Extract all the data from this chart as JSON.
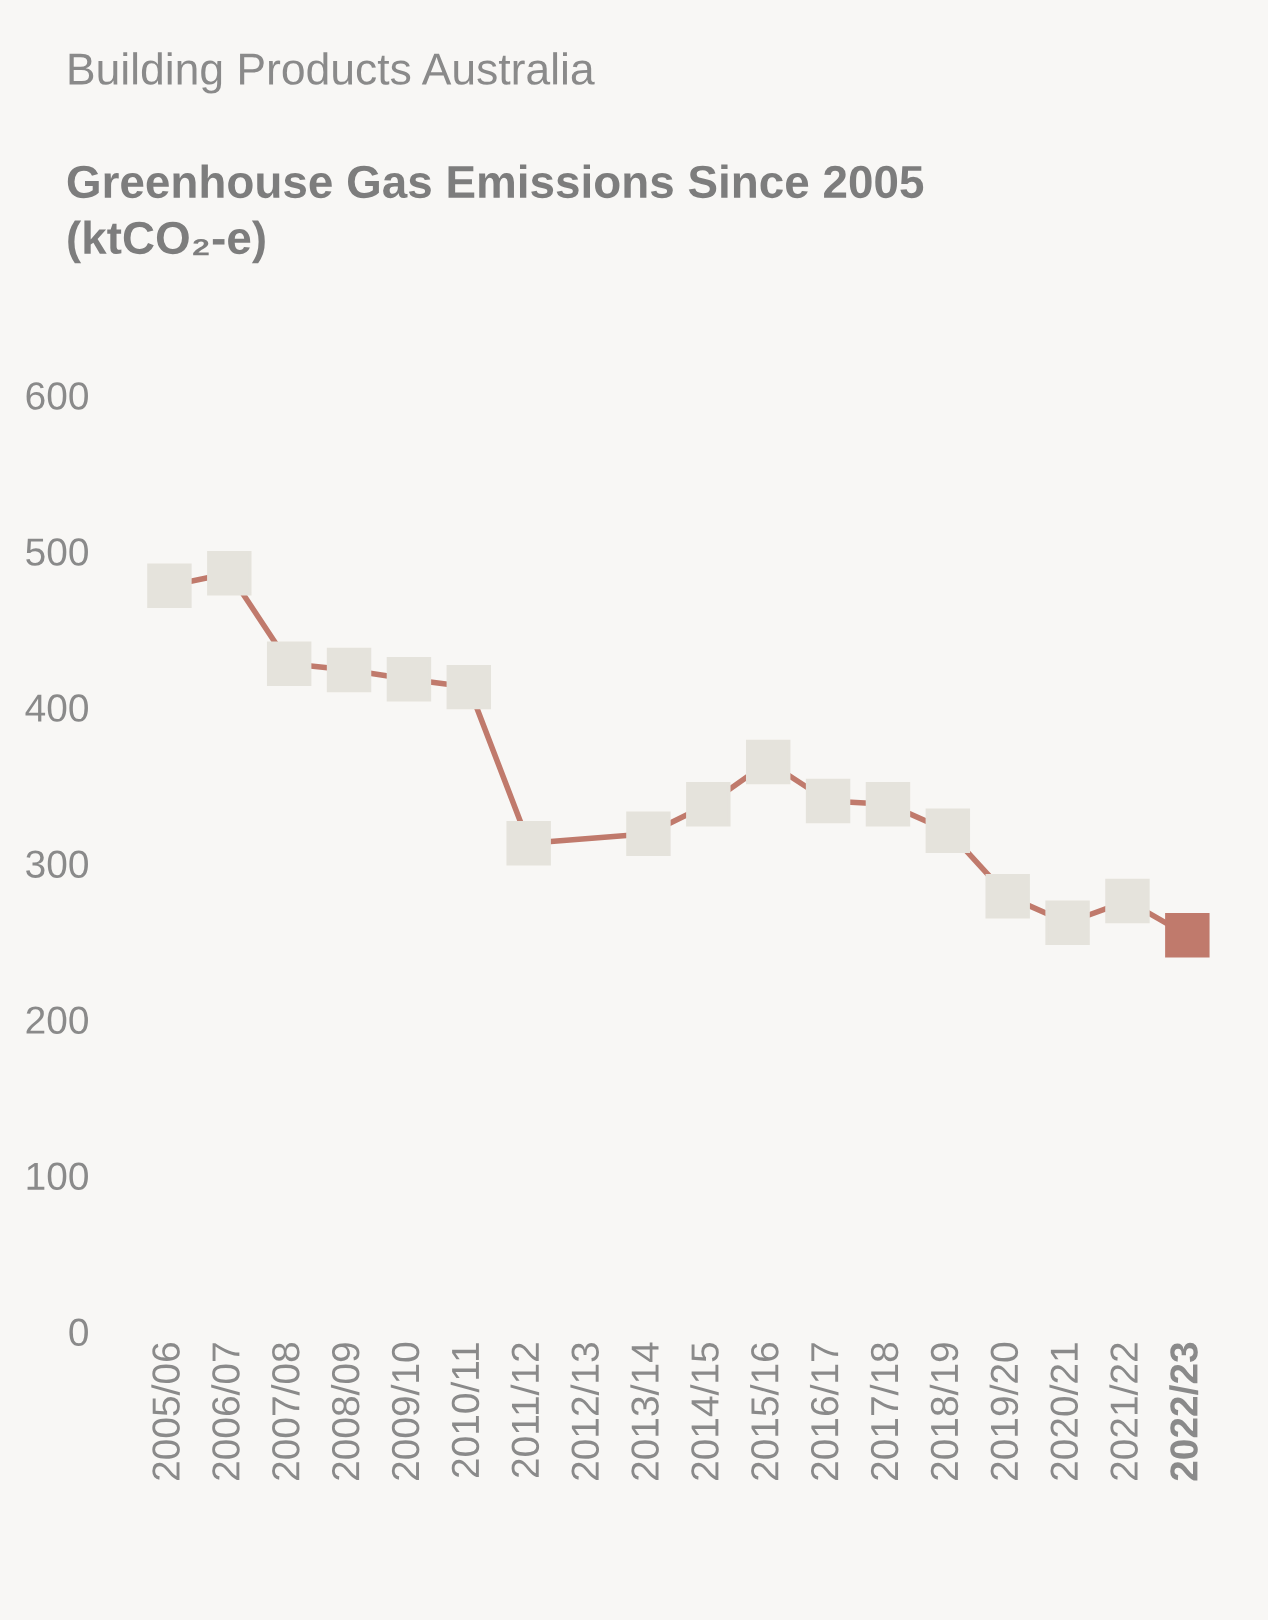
{
  "chart_data": {
    "type": "line",
    "subtitle": "Building Products Australia",
    "title": "Greenhouse Gas Emissions Since 2005\n(ktCO₂-e)",
    "categories": [
      "2005/06",
      "2006/07",
      "2007/08",
      "2008/09",
      "2009/10",
      "2010/11",
      "2011/12",
      "2012/13",
      "2013/14",
      "2014/15",
      "2015/16",
      "2016/17",
      "2017/18",
      "2018/19",
      "2019/20",
      "2020/21",
      "2021/22",
      "2022/23"
    ],
    "series": [
      {
        "color": "#c07a6c",
        "colors": [
          "#e5e3dc",
          "#e5e3dc",
          "#e5e3dc",
          "#e5e3dc",
          "#e5e3dc",
          "#e5e3dc",
          "#e5e3dc",
          null,
          "#e5e3dc",
          "#e5e3dc",
          "#e5e3dc",
          "#e5e3dc",
          "#e5e3dc",
          "#e5e3dc",
          "#e5e3dc",
          "#e5e3dc",
          "#e5e3dc",
          "#c07a6c"
        ],
        "values": [
          478,
          486,
          428,
          424,
          418,
          413,
          313,
          null,
          319,
          338,
          365,
          340,
          338,
          321,
          279,
          262,
          276,
          254
        ]
      }
    ],
    "ylim": [
      0,
      600
    ],
    "yticks": [
      0,
      100,
      200,
      300,
      400,
      500,
      600
    ],
    "marker": "square",
    "grid": false
  }
}
